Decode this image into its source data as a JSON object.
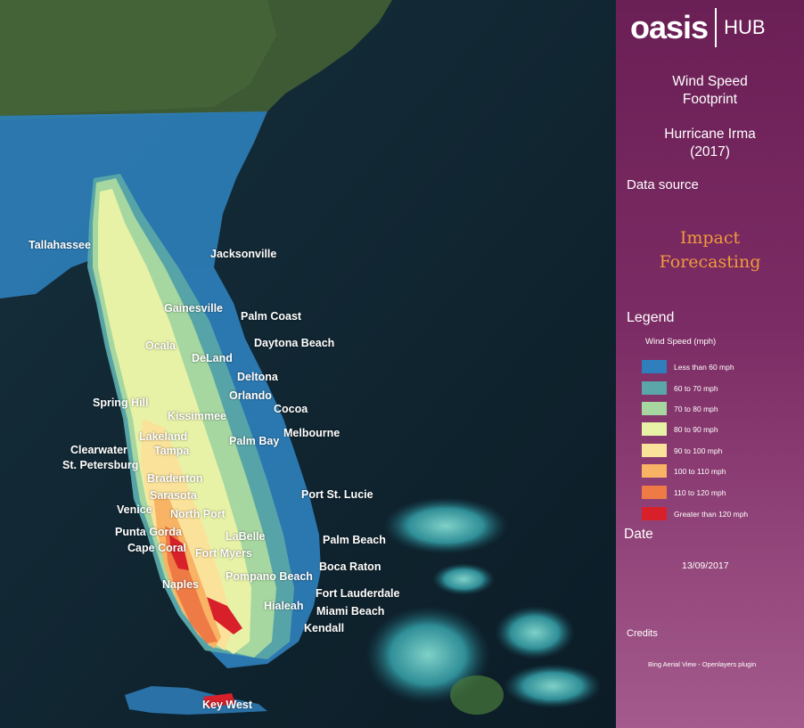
{
  "brand": {
    "name": "oasis",
    "hub": "HUB"
  },
  "panel": {
    "title": "Wind Speed Footprint",
    "event_name": "Hurricane Irma",
    "event_year": "(2017)",
    "data_source_label": "Data source",
    "data_source_line1": "Impact",
    "data_source_line2": "Forecasting",
    "legend_label": "Legend",
    "legend_subtitle": "Wind Speed (mph)",
    "legend": [
      {
        "label": "Less than 60 mph",
        "color": "#2e7fbb"
      },
      {
        "label": "60 to 70 mph",
        "color": "#5aa6a8"
      },
      {
        "label": "70 to 80 mph",
        "color": "#a6d7a0"
      },
      {
        "label": "80 to 90 mph",
        "color": "#e8f2a7"
      },
      {
        "label": "90 to 100 mph",
        "color": "#fbe29a"
      },
      {
        "label": "100 to 110 mph",
        "color": "#f9b364"
      },
      {
        "label": "110 to 120 mph",
        "color": "#ee7a45"
      },
      {
        "label": "Greater than 120 mph",
        "color": "#d8202a"
      }
    ],
    "date_label": "Date",
    "date_value": "13/09/2017",
    "credits_label": "Credits",
    "credits_value": "Bing Aerial View - Openlayers plugin"
  },
  "cities": [
    "Tallahassee",
    "Jacksonville",
    "Gainesville",
    "Palm Coast",
    "Ocala",
    "Daytona Beach",
    "DeLand",
    "Deltona",
    "Orlando",
    "Spring Hill",
    "Cocoa",
    "Kissimmee",
    "Melbourne",
    "Lakeland",
    "Palm Bay",
    "Clearwater",
    "Tampa",
    "St. Petersburg",
    "Bradenton",
    "Sarasota",
    "Port St. Lucie",
    "Venice",
    "North Port",
    "Punta Gorda",
    "LaBelle",
    "Palm Beach",
    "Cape Coral",
    "Fort Myers",
    "Boca Raton",
    "Pompano Beach",
    "Naples",
    "Fort Lauderdale",
    "Hialeah",
    "Miami Beach",
    "Kendall",
    "Key West"
  ]
}
